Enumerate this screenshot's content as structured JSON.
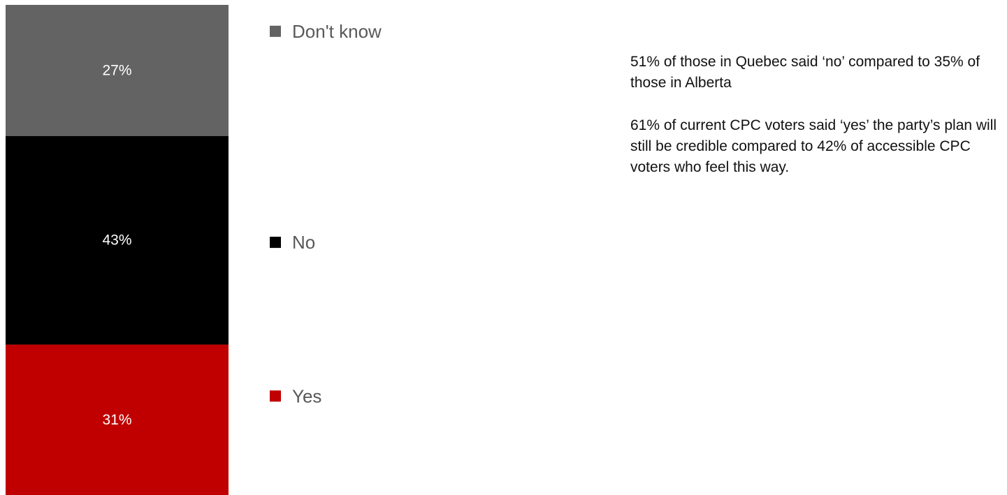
{
  "chart_data": {
    "type": "bar",
    "stacked": true,
    "percent_stacked": true,
    "ylim": [
      0,
      100
    ],
    "categories": [
      ""
    ],
    "series": [
      {
        "name": "Yes",
        "values": [
          31
        ],
        "color": "#C00000",
        "label": "31%"
      },
      {
        "name": "No",
        "values": [
          43
        ],
        "color": "#000000",
        "label": "43%"
      },
      {
        "name": "Don't know",
        "values": [
          27
        ],
        "color": "#636363",
        "label": "27%"
      }
    ],
    "legend_position": "right",
    "grid": false
  },
  "notes": [
    "51% of those in Quebec said ‘no’ compared to 35% of those in Alberta",
    "61% of current CPC voters said ‘yes’ the party’s plan will still be credible compared to 42% of accessible CPC voters who feel this way."
  ]
}
